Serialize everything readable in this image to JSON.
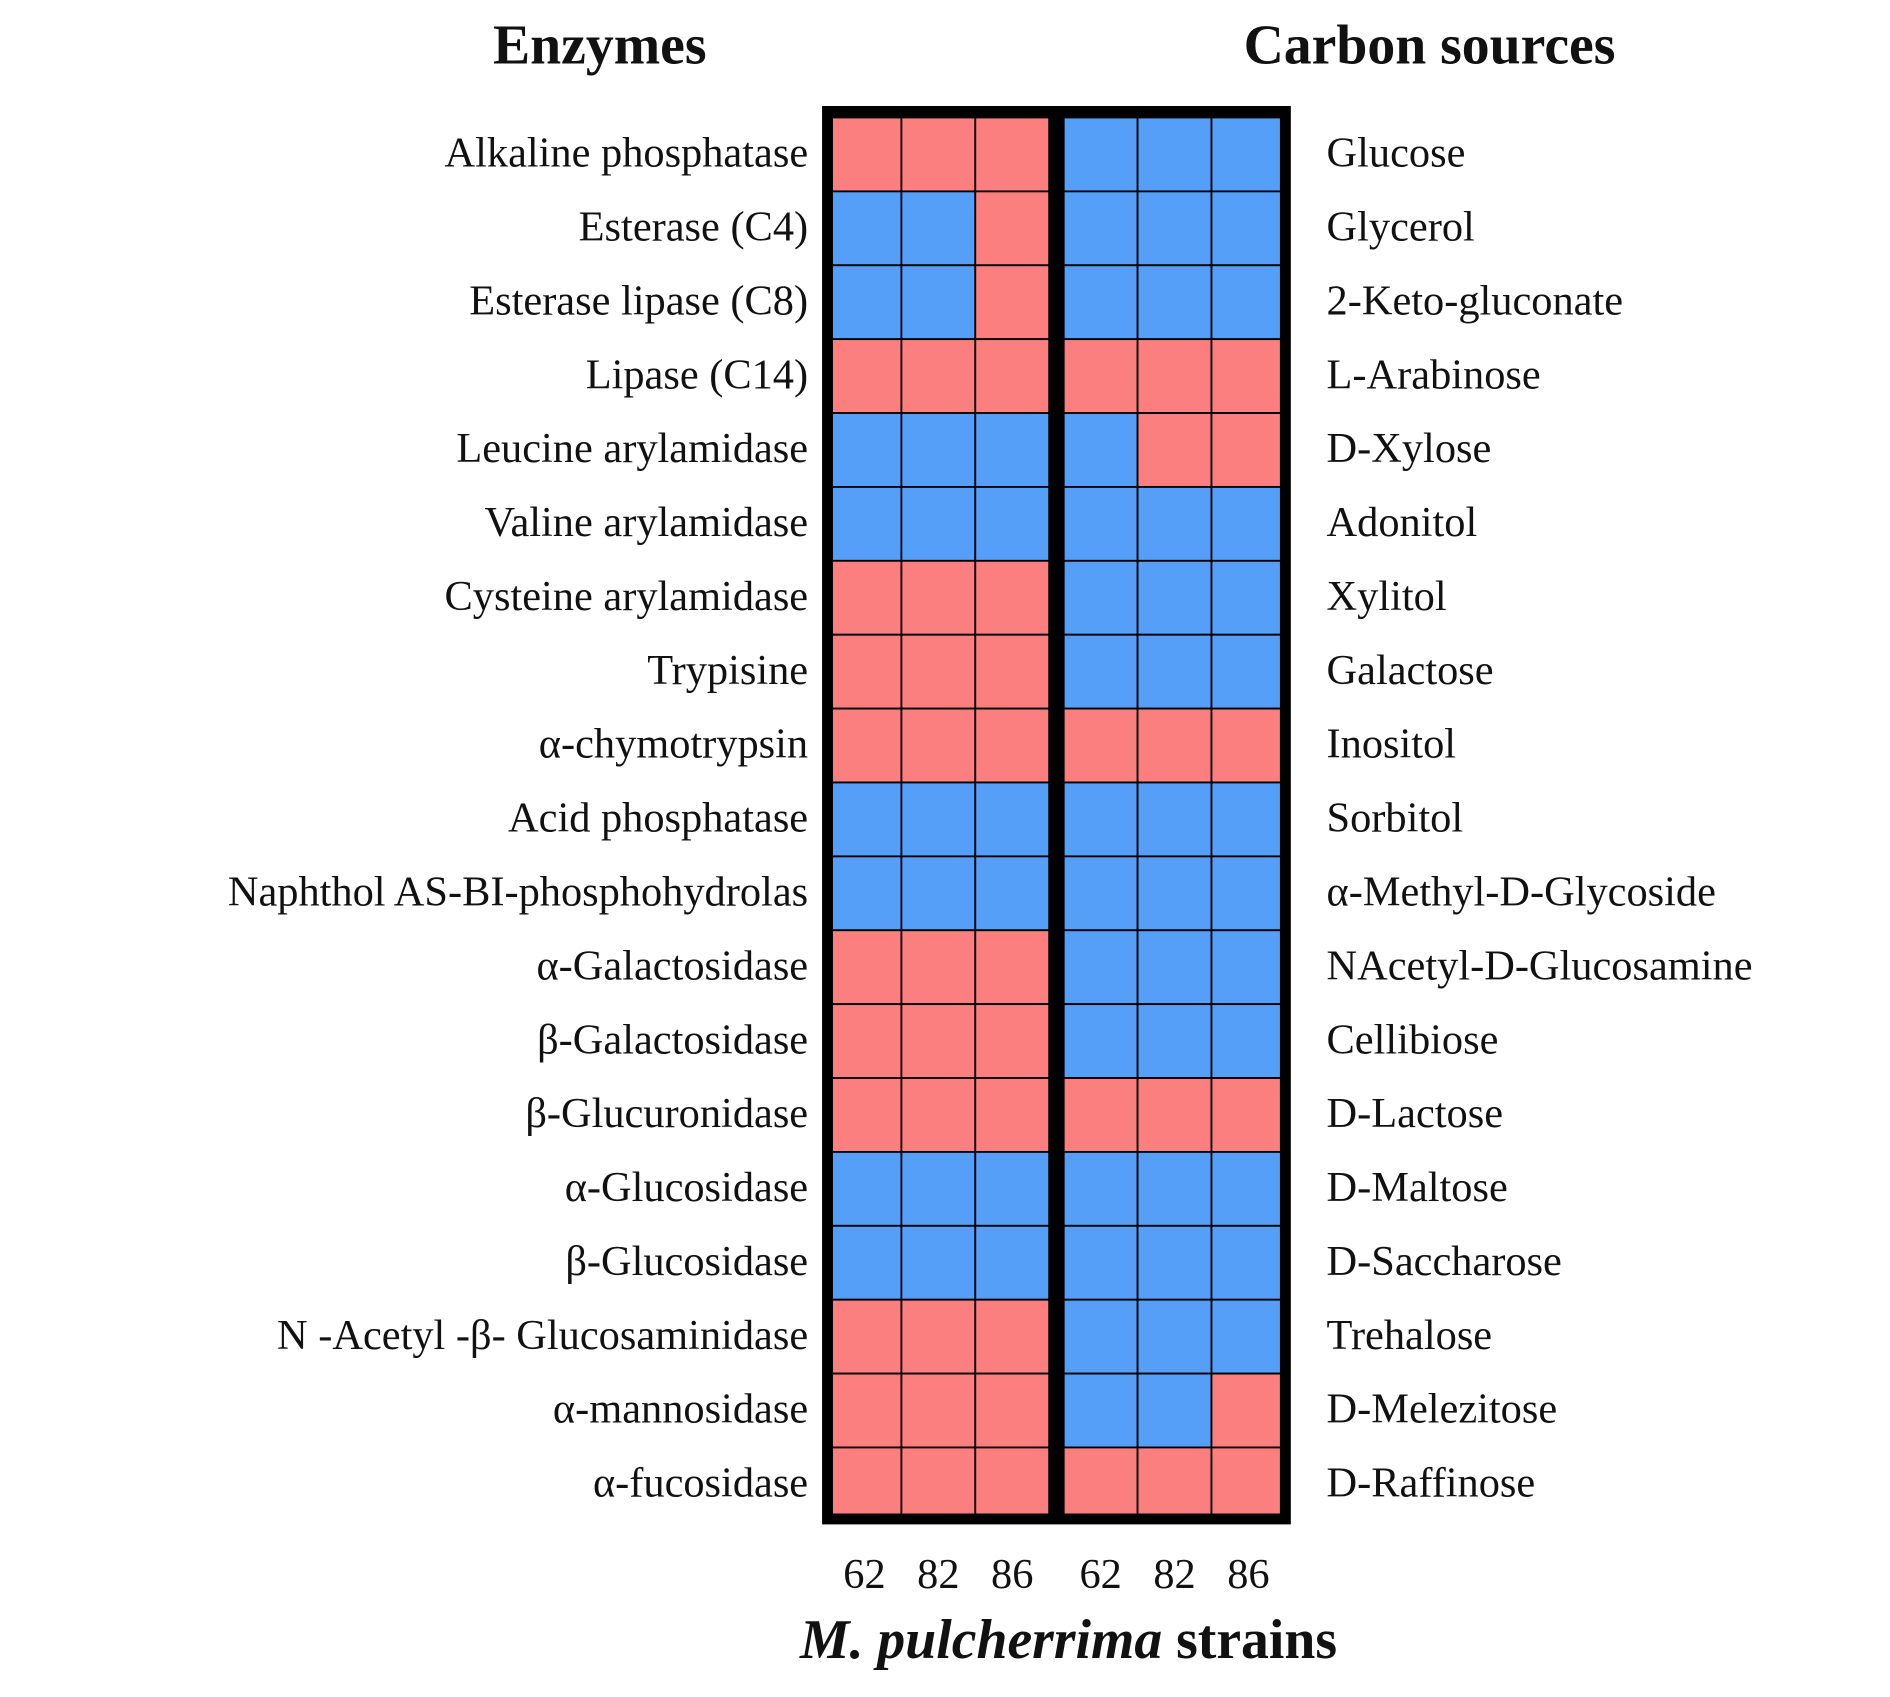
{
  "chart_data": [
    {
      "type": "heatmap",
      "title": "Enzymes",
      "categories": [
        "Alkaline phosphatase",
        "Esterase (C4)",
        "Esterase lipase (C8)",
        "Lipase (C14)",
        "Leucine arylamidase",
        "Valine arylamidase",
        "Cysteine arylamidase",
        "Trypisine",
        "α-chymotrypsin",
        "Acid phosphatase",
        "Naphthol AS-BI-phosphohydrolas",
        "α-Galactosidase",
        "β-Galactosidase",
        "β-Glucuronidase",
        "α-Glucosidase",
        "β-Glucosidase",
        "N -Acetyl -β- Glucosaminidase",
        "α-mannosidase",
        "α-fucosidase"
      ],
      "series": [
        {
          "name": "62",
          "values": [
            1,
            0,
            0,
            1,
            0,
            0,
            1,
            1,
            1,
            0,
            0,
            1,
            1,
            1,
            0,
            0,
            1,
            1,
            1
          ]
        },
        {
          "name": "82",
          "values": [
            1,
            0,
            0,
            1,
            0,
            0,
            1,
            1,
            1,
            0,
            0,
            1,
            1,
            1,
            0,
            0,
            1,
            1,
            1
          ]
        },
        {
          "name": "86",
          "values": [
            1,
            1,
            1,
            1,
            0,
            0,
            1,
            1,
            1,
            0,
            0,
            1,
            1,
            1,
            0,
            0,
            1,
            1,
            1
          ]
        }
      ],
      "colors": [
        "#559ff8",
        "#fb7f7f"
      ]
    },
    {
      "type": "heatmap",
      "title": "Carbon sources",
      "categories": [
        "Glucose",
        "Glycerol",
        "2-Keto-gluconate",
        "L-Arabinose",
        "D-Xylose",
        "Adonitol",
        "Xylitol",
        "Galactose",
        "Inositol",
        "Sorbitol",
        "α-Methyl-D-Glycoside",
        "NAcetyl-D-Glucosamine",
        "Cellibiose",
        "D-Lactose",
        "D-Maltose",
        "D-Saccharose",
        "Trehalose",
        "D-Melezitose",
        "D-Raffinose"
      ],
      "series": [
        {
          "name": "62",
          "values": [
            0,
            0,
            0,
            1,
            0,
            0,
            0,
            0,
            1,
            0,
            0,
            0,
            0,
            1,
            0,
            0,
            0,
            0,
            1
          ]
        },
        {
          "name": "82",
          "values": [
            0,
            0,
            0,
            1,
            1,
            0,
            0,
            0,
            1,
            0,
            0,
            0,
            0,
            1,
            0,
            0,
            0,
            0,
            1
          ]
        },
        {
          "name": "86",
          "values": [
            0,
            0,
            0,
            1,
            1,
            0,
            0,
            0,
            1,
            0,
            0,
            0,
            0,
            1,
            0,
            0,
            0,
            1,
            1
          ]
        }
      ],
      "colors": [
        "#559ff8",
        "#fb7f7f"
      ]
    }
  ],
  "x_label": [
    "M. pulcherrima",
    "strains"
  ]
}
